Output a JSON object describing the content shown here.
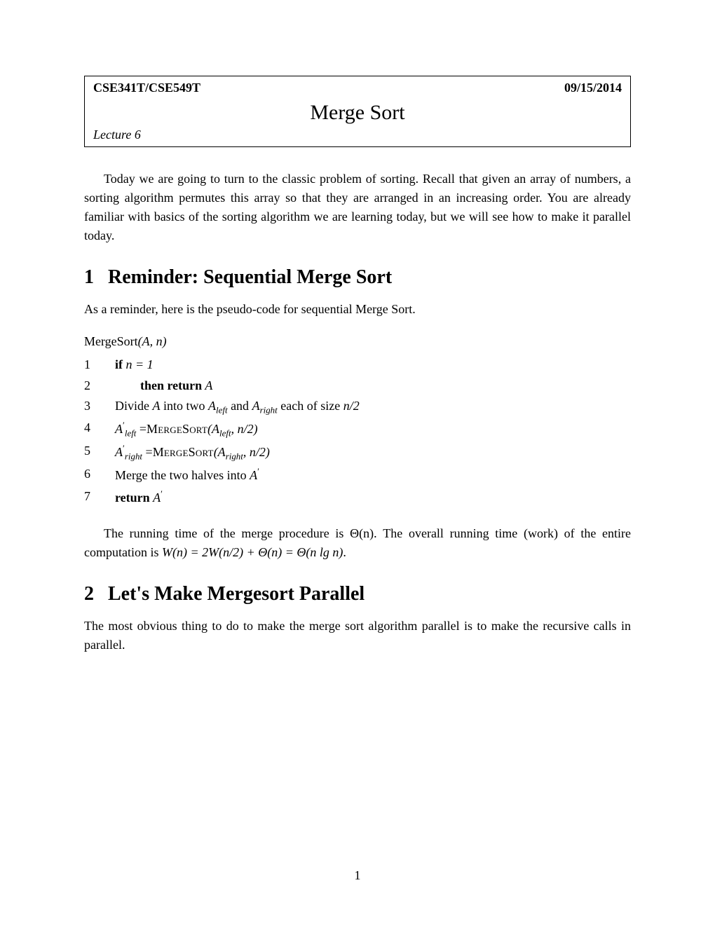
{
  "header": {
    "course": "CSE341T/CSE549T",
    "date": "09/15/2014",
    "title": "Merge Sort",
    "lecture": "Lecture 6"
  },
  "intro": "Today we are going to turn to the classic problem of sorting. Recall that given an array of numbers, a sorting algorithm permutes this array so that they are arranged in an increasing order. You are already familiar with basics of the sorting algorithm we are learning today, but we will see how to make it parallel today.",
  "section1": {
    "num": "1",
    "title": "Reminder: Sequential Merge Sort",
    "intro": "As a reminder, here is the pseudo-code for sequential Merge Sort.",
    "funcname_prefix": "MergeSort",
    "funcname_args": "(A, n)",
    "pseudo": {
      "l1_kw": "if",
      "l1_rest": " n = 1",
      "l2_kw": "then return",
      "l2_rest": " A",
      "l3_pre": "Divide ",
      "l3_A": "A",
      "l3_mid1": " into two ",
      "l3_Aleft": "A",
      "l3_left": "left",
      "l3_mid2": " and ",
      "l3_Aright": "A",
      "l3_right": "right",
      "l3_mid3": " each of size ",
      "l3_end": "n/2",
      "l4_lhs": "A",
      "l4_prime": "′",
      "l4_sub": "left",
      "l4_eq": " =",
      "l4_func": "MergeSort",
      "l4_args_open": "(A",
      "l4_args_sub": "left",
      "l4_args_end": ", n/2)",
      "l5_lhs": "A",
      "l5_prime": "′",
      "l5_sub": "right",
      "l5_eq": " =",
      "l5_func": "MergeSort",
      "l5_args_open": "(A",
      "l5_args_sub": "right",
      "l5_args_end": ", n/2)",
      "l6_text": "Merge the two halves into ",
      "l6_A": "A",
      "l6_prime": "′",
      "l7_kw": "return",
      "l7_sp": " ",
      "l7_A": "A",
      "l7_prime": "′"
    },
    "outro_pre": "The running time of the merge procedure is ",
    "outro_theta1": "Θ(n)",
    "outro_mid": ". The overall running time (work) of the entire computation is ",
    "outro_eq": "W(n) = 2W(n/2) + Θ(n) = Θ(n lg n)",
    "outro_end": "."
  },
  "section2": {
    "num": "2",
    "title": "Let's Make Mergesort Parallel",
    "text": "The most obvious thing to do to make the merge sort algorithm parallel is to make the recursive calls in parallel."
  },
  "page_number": "1"
}
